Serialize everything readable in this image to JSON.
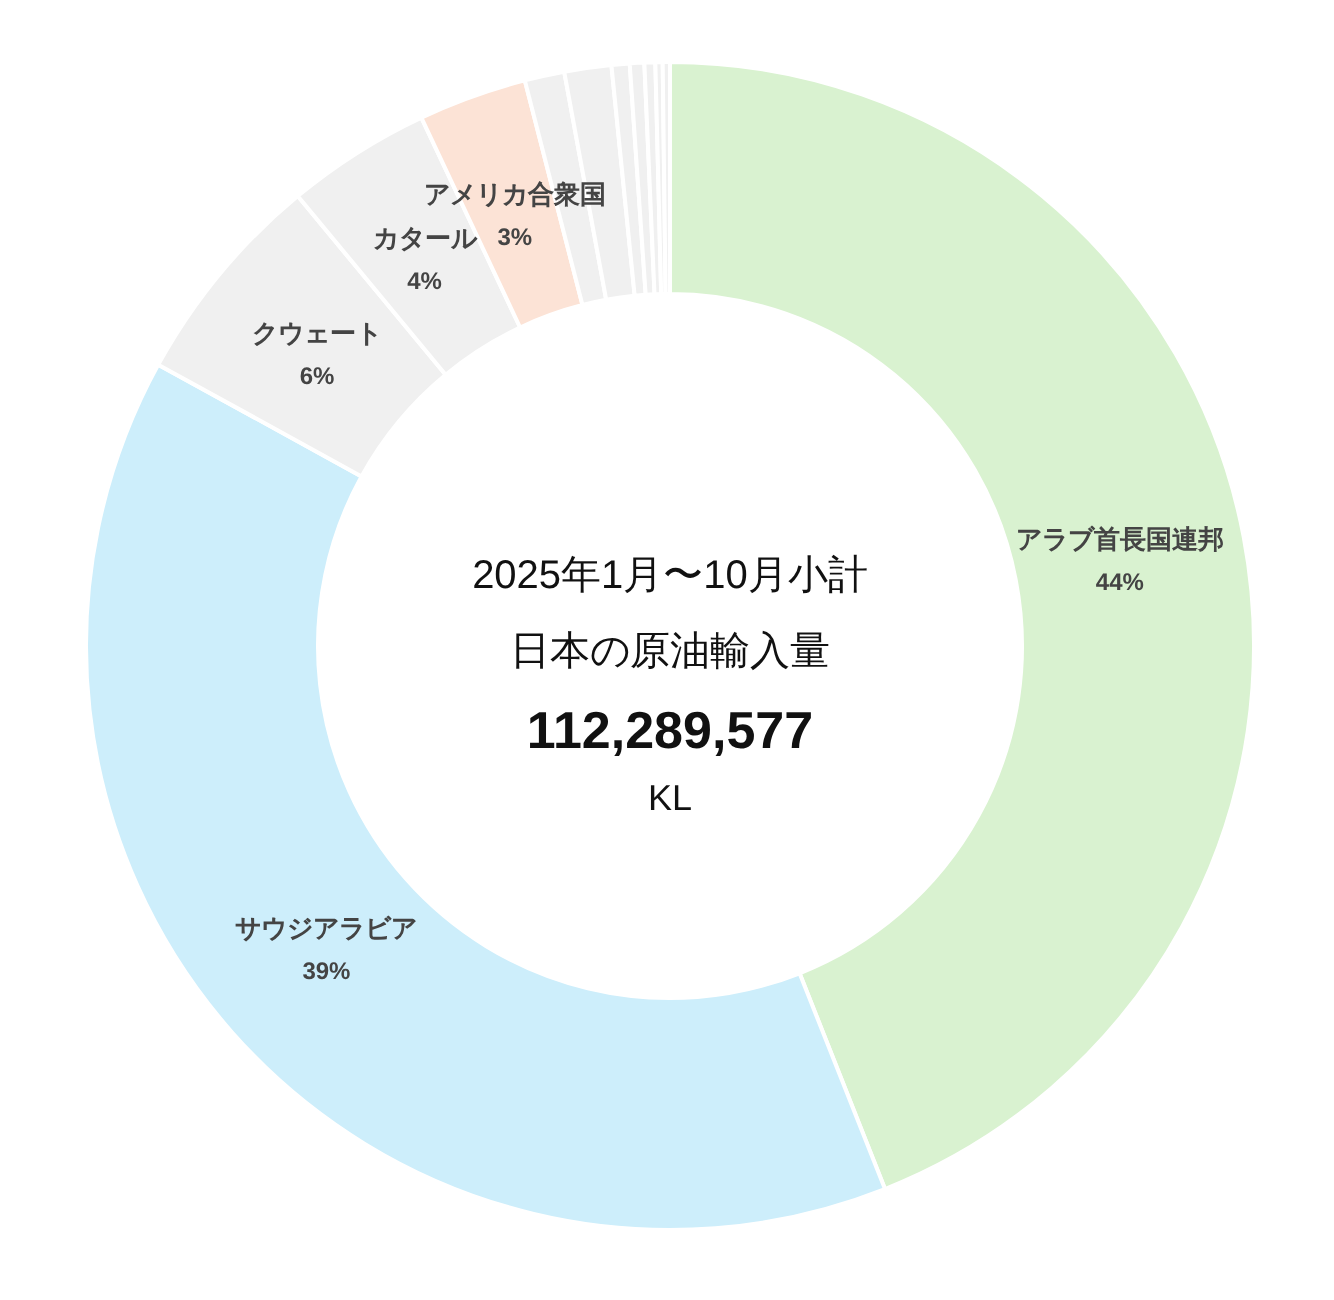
{
  "chart_data": {
    "type": "donut",
    "title": "2025年1月〜10月小計",
    "subtitle": "日本の原油輸入量",
    "annotations": [
      "112,289,577",
      "KL"
    ],
    "categories": [
      "アラブ首長国連邦",
      "サウジアラビア",
      "クウェート",
      "カタール",
      "アメリカ合衆国",
      null,
      null,
      null,
      null,
      null,
      null,
      null
    ],
    "values": [
      44,
      39,
      6,
      4,
      3,
      1.1,
      1.3,
      0.5,
      0.4,
      0.3,
      0.2,
      0.2
    ],
    "colors": [
      "#d9f2d0",
      "#cdeefb",
      "#f0f0f0",
      "#f0f0f0",
      "#fce3d6",
      "#f0f0f0",
      "#f0f0f0",
      "#f0f0f0",
      "#f0f0f0",
      "#f0f0f0",
      "#f0f0f0",
      "#f0f0f0"
    ],
    "value_labels": [
      "44%",
      "39%",
      "6%",
      "4%",
      "3%",
      null,
      null,
      null,
      null,
      null,
      null,
      null
    ]
  }
}
